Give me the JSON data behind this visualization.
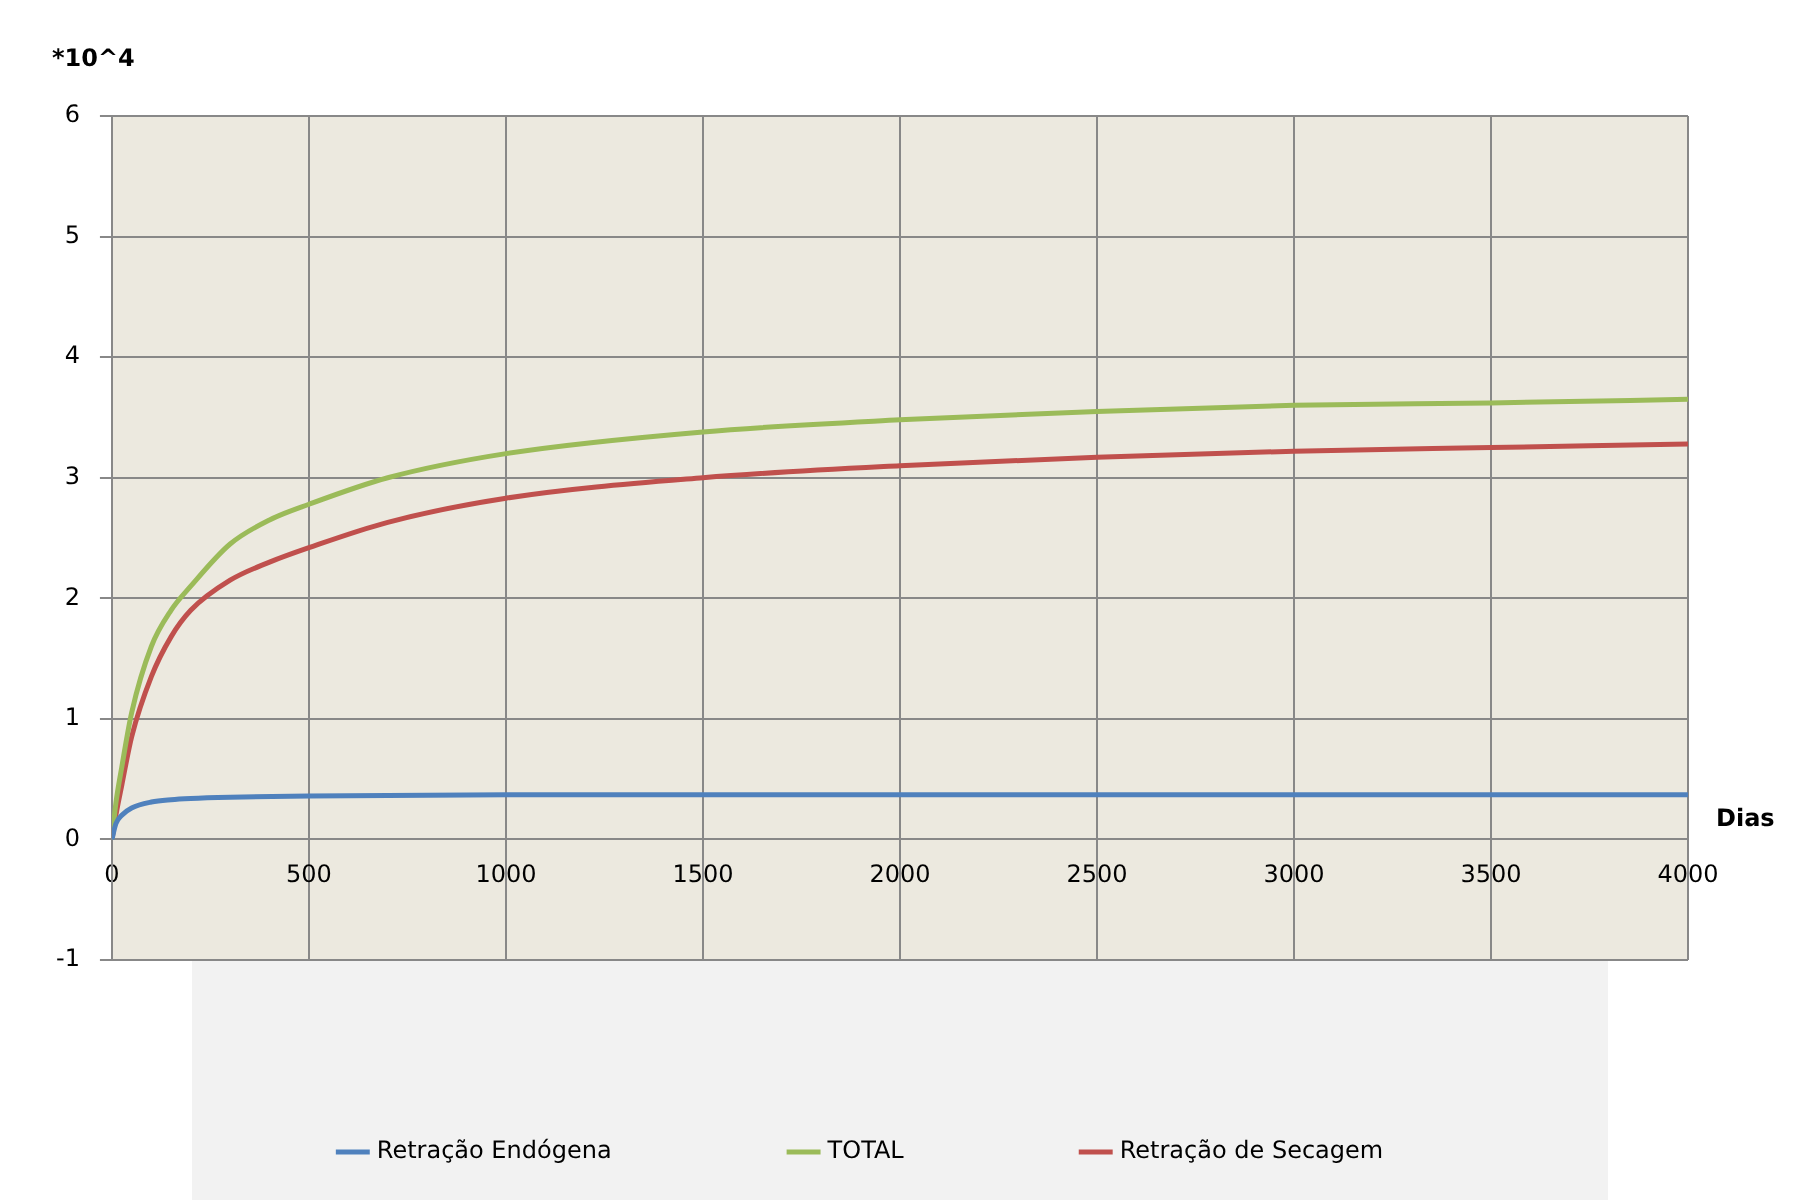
{
  "chart_data": {
    "type": "line",
    "xlabel": "Dias",
    "ylabel": "*10^4",
    "xlim": [
      0,
      4000
    ],
    "xticks": [
      0,
      500,
      1000,
      1500,
      2000,
      2500,
      3000,
      3500,
      4000
    ],
    "ylim": [
      -1,
      6
    ],
    "yticks": [
      -1,
      0,
      1,
      2,
      3,
      4,
      5,
      6
    ],
    "grid": true,
    "legend": "bottom",
    "marker": "none",
    "line_style": "solid",
    "series": [
      {
        "name": "Retração Endógena",
        "color": "#4f81bd",
        "x": [
          0,
          10,
          25,
          50,
          100,
          150,
          200,
          300,
          500,
          1000,
          1500,
          2000,
          2500,
          3000,
          3500,
          4000
        ],
        "values": [
          0,
          0.13,
          0.2,
          0.26,
          0.31,
          0.33,
          0.34,
          0.35,
          0.36,
          0.37,
          0.37,
          0.37,
          0.37,
          0.37,
          0.37,
          0.37
        ]
      },
      {
        "name": "TOTAL",
        "color": "#9bbb59",
        "x": [
          0,
          10,
          25,
          50,
          100,
          150,
          200,
          300,
          400,
          500,
          700,
          1000,
          1500,
          2000,
          2500,
          3000,
          3500,
          4000
        ],
        "values": [
          0,
          0.3,
          0.6,
          1.05,
          1.6,
          1.9,
          2.1,
          2.45,
          2.65,
          2.78,
          3.0,
          3.2,
          3.38,
          3.48,
          3.55,
          3.6,
          3.62,
          3.65
        ]
      },
      {
        "name": "Retração de Secagem",
        "color": "#c0504d",
        "x": [
          0,
          10,
          25,
          50,
          100,
          150,
          200,
          300,
          400,
          500,
          700,
          1000,
          1500,
          2000,
          2500,
          3000,
          3500,
          4000
        ],
        "values": [
          0,
          0.2,
          0.45,
          0.85,
          1.35,
          1.68,
          1.9,
          2.15,
          2.3,
          2.42,
          2.63,
          2.83,
          3.0,
          3.1,
          3.17,
          3.22,
          3.25,
          3.28
        ]
      }
    ]
  }
}
